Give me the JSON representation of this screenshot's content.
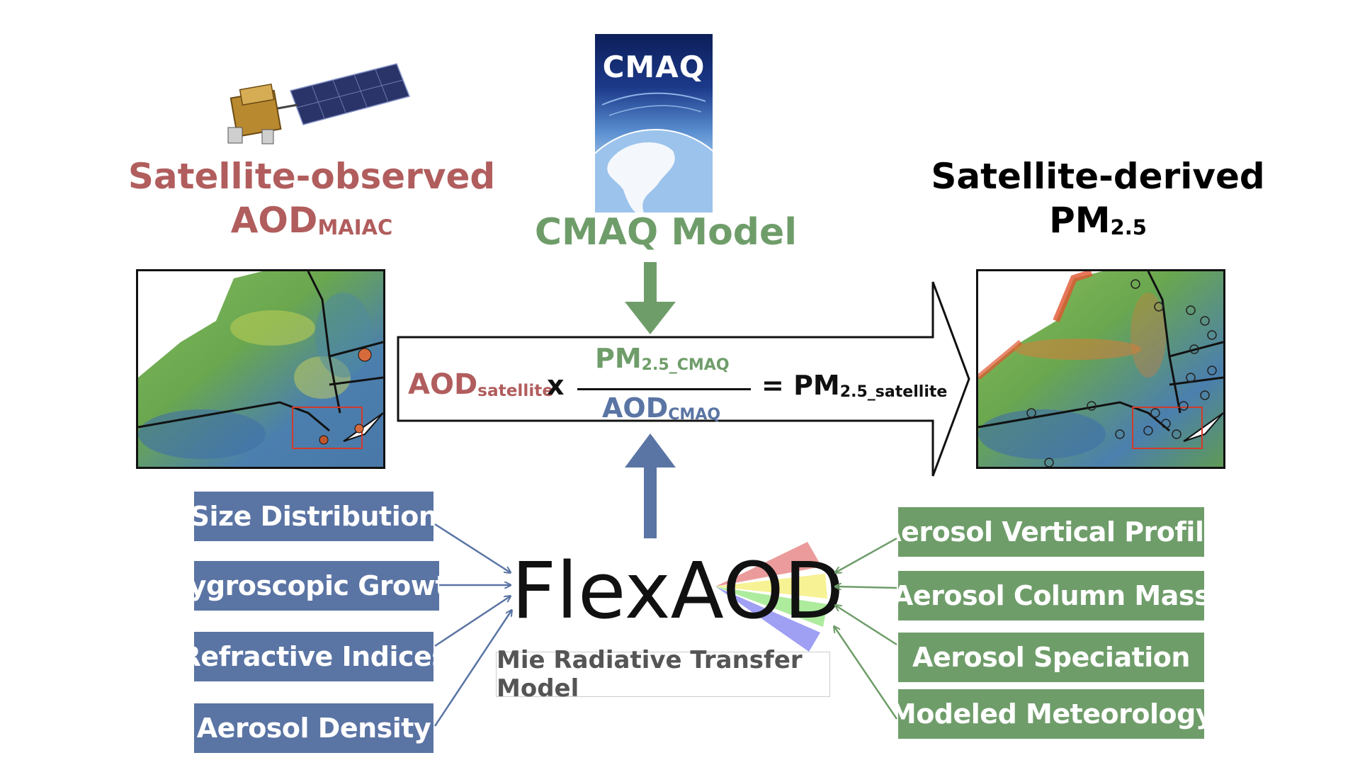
{
  "titles": {
    "left_line1": "Satellite-observed",
    "left_line2_main": "AOD",
    "left_line2_sub": "MAIAC",
    "center": "CMAQ Model",
    "right_line1": "Satellite-derived",
    "right_line2_main": "PM",
    "right_line2_sub": "2.5"
  },
  "cmaq_logo_text": "CMAQ",
  "equation": {
    "lhs_main": "AOD",
    "lhs_sub": "satellite",
    "times": "x",
    "num_main": "PM",
    "num_sub": "2.5_CMAQ",
    "den_main": "AOD",
    "den_sub": "CMAQ",
    "rhs_eq": "=",
    "rhs_main": "PM",
    "rhs_sub": "2.5_satellite"
  },
  "flexaod": {
    "logo": "FlexAOD",
    "subtitle": "Mie Radiative Transfer Model"
  },
  "left_inputs": [
    "Size Distribution",
    "Hygroscopic Growth",
    "Refractive Indices",
    "Aerosol Density"
  ],
  "right_inputs": [
    "Aerosol Vertical Profile",
    "Aerosol Column Mass",
    "Aerosol Speciation",
    "Modeled Meteorology"
  ],
  "colors": {
    "red_title": "#b15d5d",
    "green": "#6f9d6a",
    "blue": "#5a74a4"
  }
}
